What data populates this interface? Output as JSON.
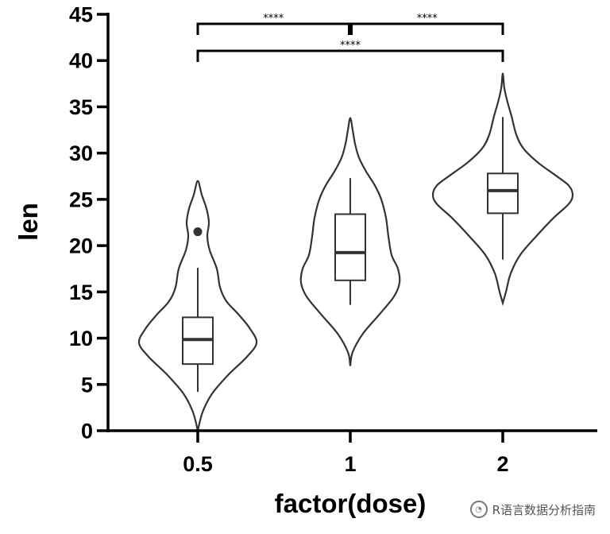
{
  "chart_data": {
    "type": "violin",
    "xlabel": "factor(dose)",
    "ylabel": "len",
    "categories": [
      "0.5",
      "1",
      "2"
    ],
    "ylim": [
      0,
      45
    ],
    "yticks": [
      0,
      5,
      10,
      15,
      20,
      25,
      30,
      35,
      40,
      45
    ],
    "groups": [
      {
        "category": "0.5",
        "box": {
          "lower_whisker": 4.2,
          "q1": 7.2,
          "median": 9.85,
          "q3": 12.25,
          "upper_whisker": 17.6
        },
        "outliers": [
          21.5
        ],
        "density": [
          [
            0.0,
            0.0
          ],
          [
            2.0,
            6
          ],
          [
            4.0,
            18
          ],
          [
            6.0,
            38
          ],
          [
            8.0,
            62
          ],
          [
            9.5,
            74
          ],
          [
            11.0,
            66
          ],
          [
            12.5,
            52
          ],
          [
            14.0,
            36
          ],
          [
            15.5,
            28
          ],
          [
            17.5,
            24
          ],
          [
            19.5,
            15
          ],
          [
            21.0,
            12
          ],
          [
            22.5,
            14
          ],
          [
            24.0,
            11
          ],
          [
            25.5,
            5
          ],
          [
            27.0,
            0.0
          ]
        ]
      },
      {
        "category": "1",
        "box": {
          "lower_whisker": 13.6,
          "q1": 16.25,
          "median": 19.25,
          "q3": 23.4,
          "upper_whisker": 27.3
        },
        "outliers": [],
        "density": [
          [
            7.0,
            0.0
          ],
          [
            8.5,
            3
          ],
          [
            10.5,
            16
          ],
          [
            12.5,
            36
          ],
          [
            14.5,
            55
          ],
          [
            16.0,
            62
          ],
          [
            17.5,
            60
          ],
          [
            19.0,
            52
          ],
          [
            21.0,
            48
          ],
          [
            23.0,
            45
          ],
          [
            25.0,
            39
          ],
          [
            26.5,
            31
          ],
          [
            28.0,
            20
          ],
          [
            29.5,
            11
          ],
          [
            31.0,
            6
          ],
          [
            32.5,
            3
          ],
          [
            33.8,
            0.0
          ]
        ]
      },
      {
        "category": "2",
        "box": {
          "lower_whisker": 18.5,
          "q1": 23.5,
          "median": 25.95,
          "q3": 27.8,
          "upper_whisker": 33.9
        },
        "outliers": [],
        "density": [
          [
            13.8,
            0.0
          ],
          [
            15.0,
            4
          ],
          [
            17.0,
            10
          ],
          [
            19.0,
            22
          ],
          [
            21.0,
            42
          ],
          [
            23.0,
            64
          ],
          [
            24.5,
            83
          ],
          [
            25.5,
            88
          ],
          [
            26.5,
            83
          ],
          [
            27.5,
            68
          ],
          [
            29.0,
            44
          ],
          [
            30.5,
            26
          ],
          [
            32.0,
            17
          ],
          [
            34.0,
            11
          ],
          [
            35.5,
            6
          ],
          [
            37.0,
            2
          ],
          [
            38.6,
            0.0
          ]
        ]
      }
    ],
    "comparisons": [
      {
        "groups": [
          "0.5",
          "1"
        ],
        "label": "****"
      },
      {
        "groups": [
          "1",
          "2"
        ],
        "label": "****"
      },
      {
        "groups": [
          "0.5",
          "2"
        ],
        "label": "****"
      }
    ],
    "grid": false,
    "legend": "none"
  },
  "watermark": {
    "text": "R语言数据分析指南",
    "icon": "wechat-icon"
  }
}
